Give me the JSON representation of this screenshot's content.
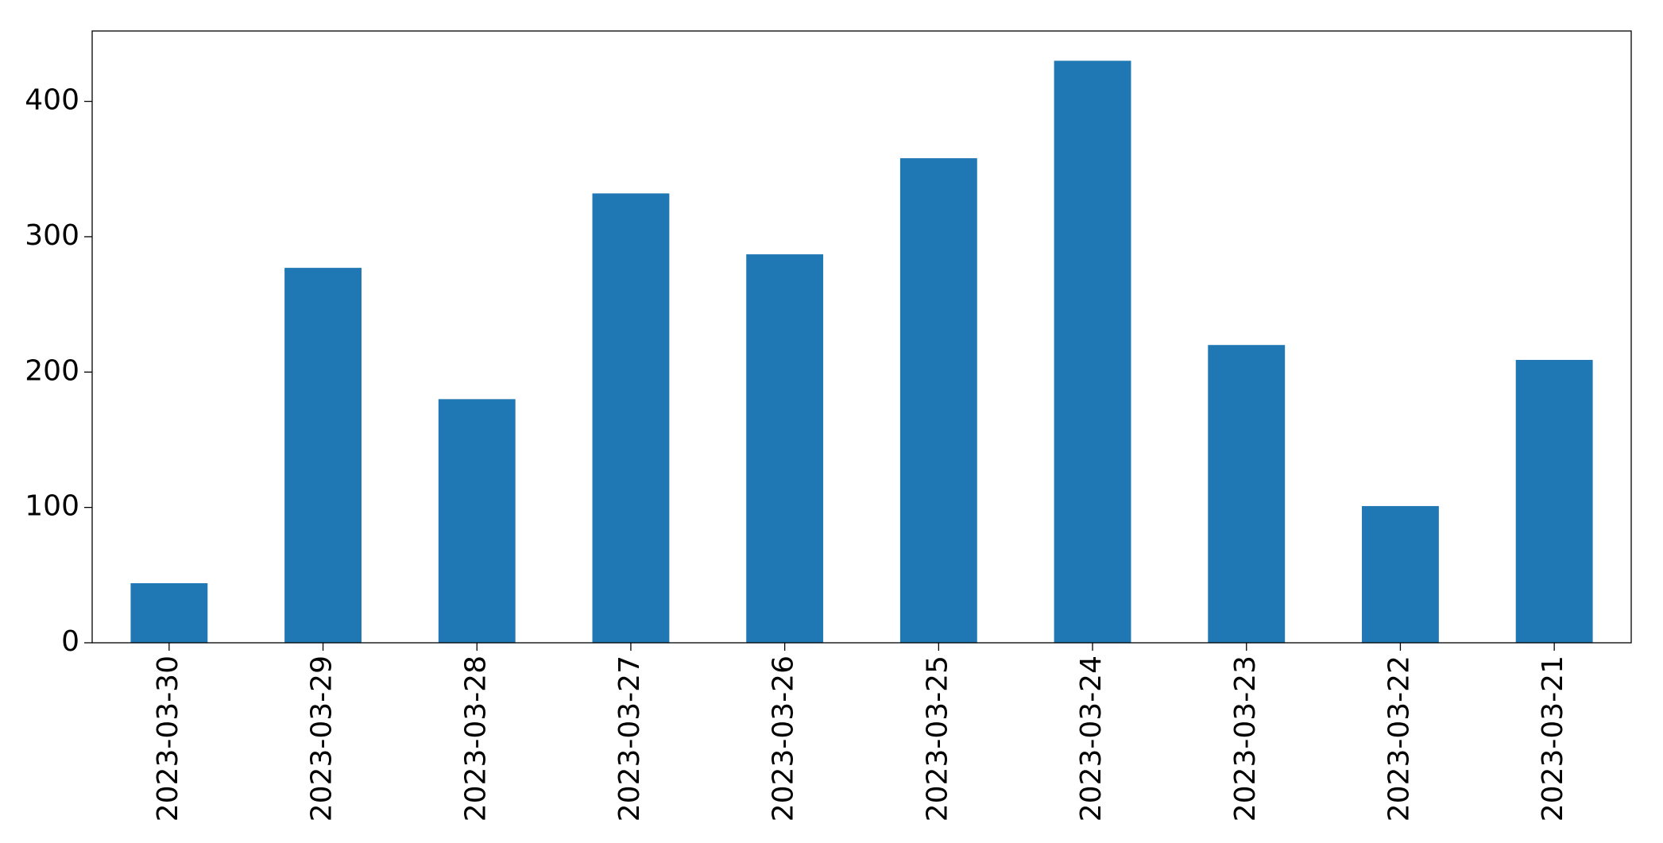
{
  "chart_data": {
    "type": "bar",
    "categories": [
      "2023-03-30",
      "2023-03-29",
      "2023-03-28",
      "2023-03-27",
      "2023-03-26",
      "2023-03-25",
      "2023-03-24",
      "2023-03-23",
      "2023-03-22",
      "2023-03-21"
    ],
    "values": [
      44,
      277,
      180,
      332,
      287,
      358,
      430,
      220,
      101,
      209
    ],
    "color": "#1f77b4",
    "ylim": [
      0,
      452
    ],
    "yticks": [
      0,
      100,
      200,
      300,
      400
    ],
    "grid": false
  }
}
